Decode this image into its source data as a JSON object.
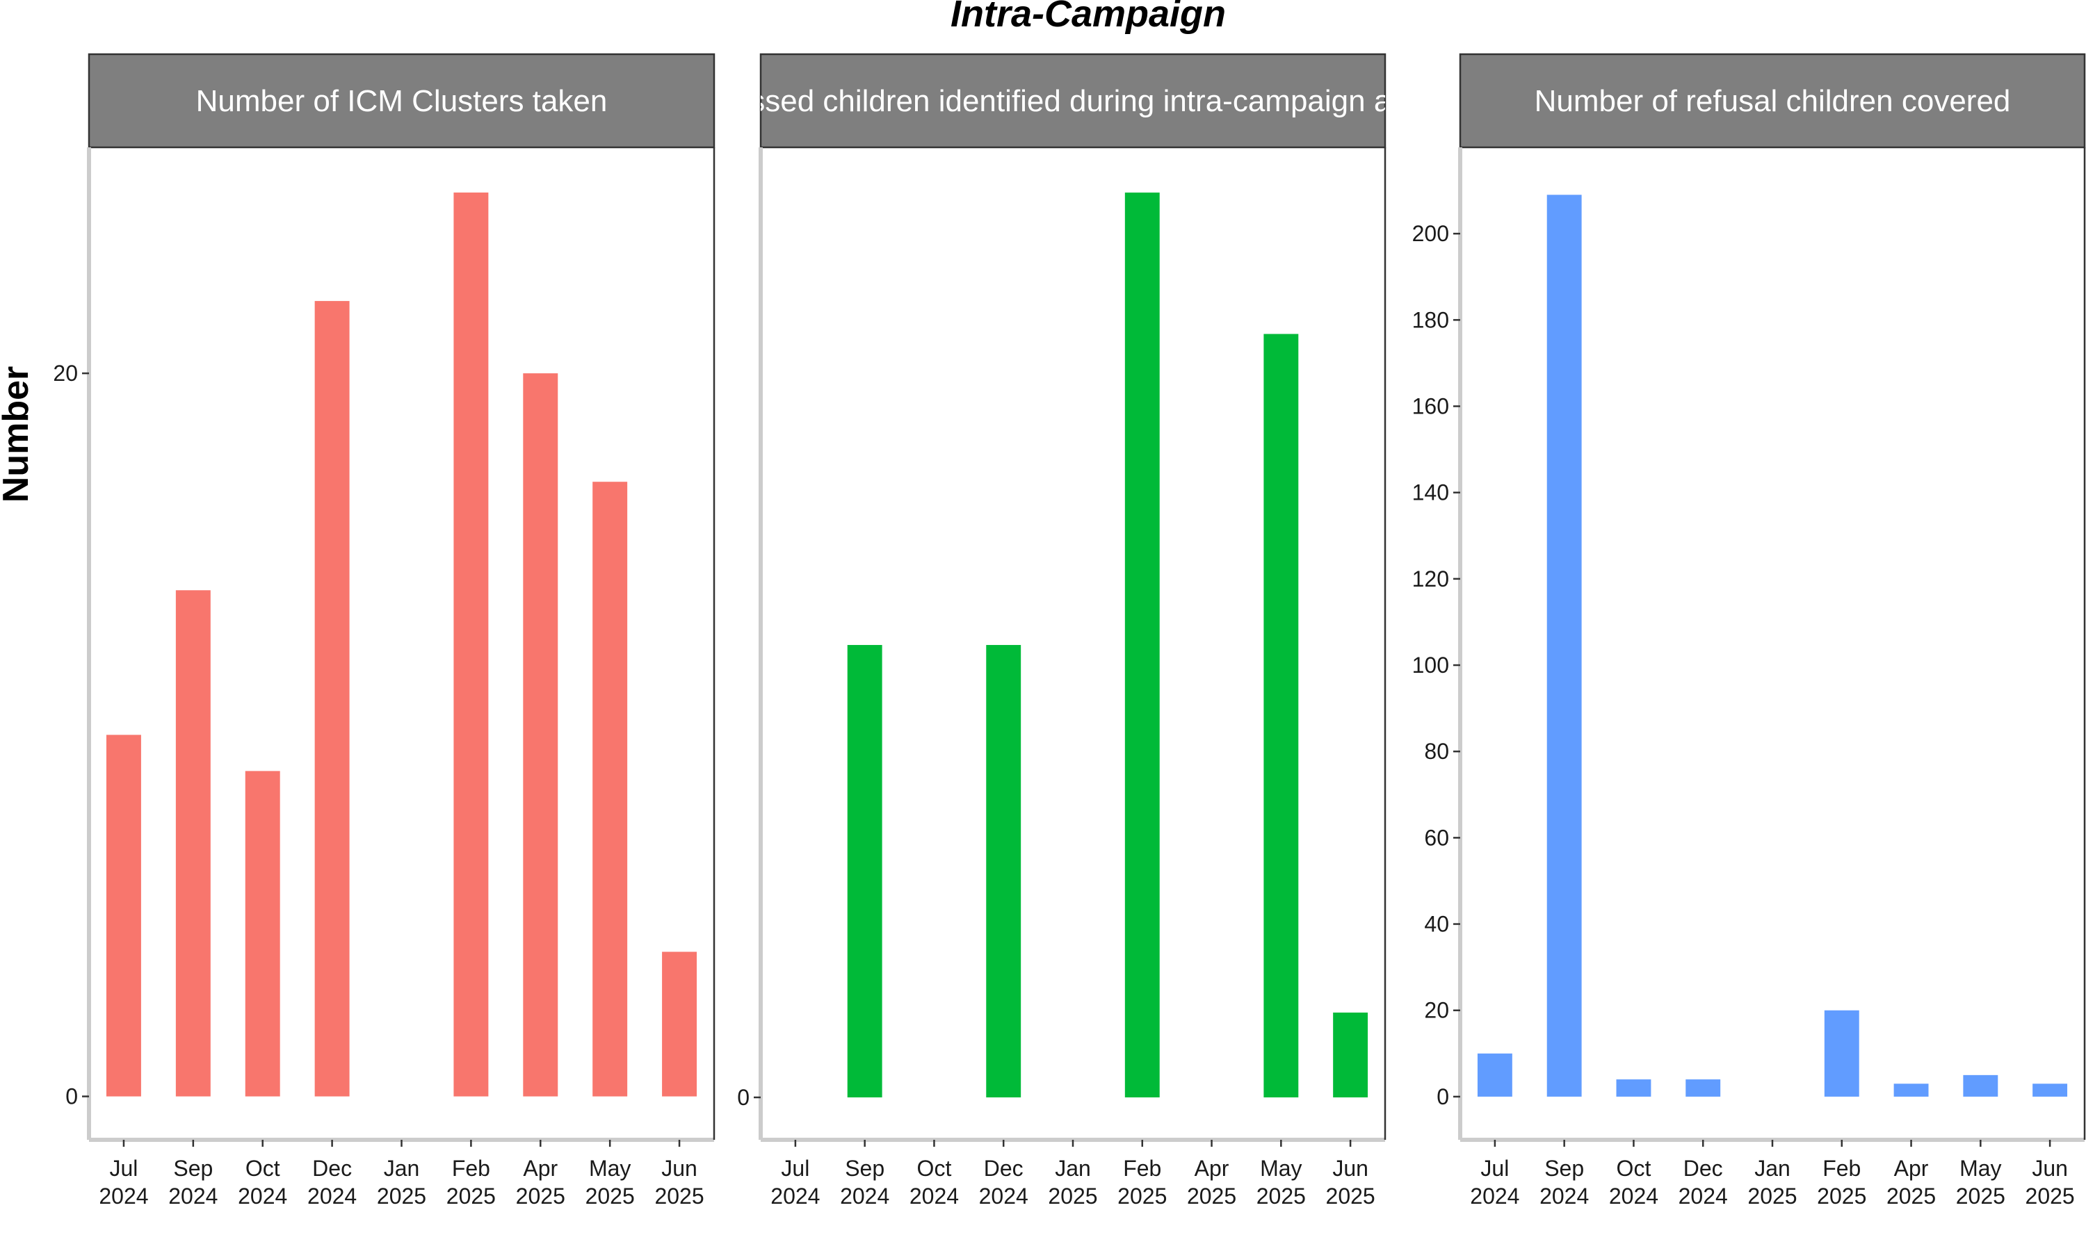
{
  "chart_data": {
    "type": "bar",
    "title": "Intra-Campaign",
    "ylabel": "Number",
    "categories": [
      "Jul\n2024",
      "Sep\n2024",
      "Oct\n2024",
      "Dec\n2024",
      "Jan\n2025",
      "Feb\n2025",
      "Apr\n2025",
      "May\n2025",
      "Jun\n2025"
    ],
    "panels": [
      {
        "title_lines": [
          "Number of ICM Clusters taken"
        ],
        "color": "#F8766D",
        "values": [
          10,
          14,
          9,
          22,
          null,
          25,
          20,
          17,
          4
        ],
        "ylim": [
          -1.2,
          26.25
        ],
        "yticks": [
          0,
          20
        ]
      },
      {
        "title_lines": [
          "Number of missed children identified during intra-campaign and vaccinated"
        ],
        "color": "#00BA38",
        "values": [
          null,
          16,
          null,
          16,
          null,
          32,
          null,
          27,
          3
        ],
        "ylim": [
          -1.5,
          33.6
        ],
        "yticks": [
          0
        ]
      },
      {
        "title_lines": [
          "Number of refusal children covered"
        ],
        "color": "#619CFF",
        "values": [
          10,
          209,
          4,
          4,
          null,
          20,
          3,
          5,
          3
        ],
        "ylim": [
          -10,
          220
        ],
        "yticks": [
          0,
          20,
          40,
          60,
          80,
          100,
          120,
          140,
          160,
          180,
          200
        ]
      }
    ]
  }
}
